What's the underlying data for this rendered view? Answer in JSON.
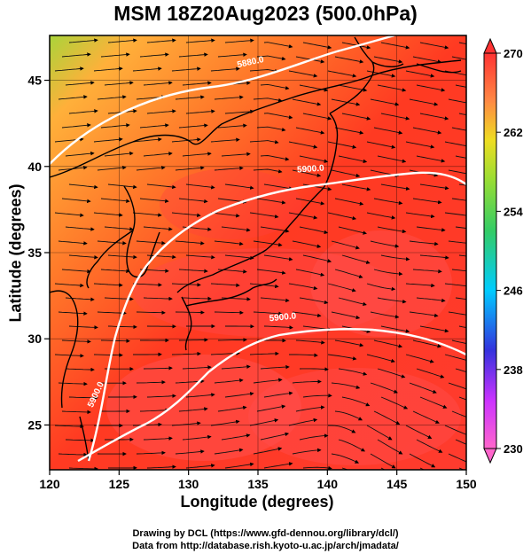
{
  "title": "MSM 18Z20Aug2023 (500.0hPa)",
  "xlabel": "Longitude (degrees)",
  "ylabel": "Latitude  (degrees)",
  "credits": [
    "Drawing by DCL (https://www.gfd-dennou.org/library/dcl/)",
    "Data from http://database.rish.kyoto-u.ac.jp/arch/jmadata/"
  ],
  "map": {
    "lon_range": [
      120,
      150
    ],
    "lat_range": [
      22.4,
      47.6
    ],
    "lon_ticks": [
      120,
      125,
      130,
      135,
      140,
      145,
      150
    ],
    "lat_ticks": [
      25,
      30,
      35,
      40,
      45
    ],
    "grid": true,
    "field": "temperature shading with wind streamlines and geopotential height contours",
    "colorbar": {
      "min": 230,
      "max": 270,
      "ticks": [
        230,
        238,
        246,
        254,
        262,
        270
      ],
      "colors": [
        "#ff66cc",
        "#cc33ff",
        "#3333dd",
        "#00ccff",
        "#33cc66",
        "#99dd33",
        "#eedd22",
        "#ff8844",
        "#ff3333"
      ]
    },
    "contours": [
      {
        "label": "5880.0",
        "label_at": [
          134.5,
          45.9
        ]
      },
      {
        "label": "5900.0",
        "label_at": [
          138.8,
          39.7
        ]
      },
      {
        "label": "5900.0",
        "label_at": [
          136.8,
          31.1
        ]
      },
      {
        "label": "5900.0",
        "label_at": [
          123.5,
          26.7
        ]
      }
    ]
  }
}
